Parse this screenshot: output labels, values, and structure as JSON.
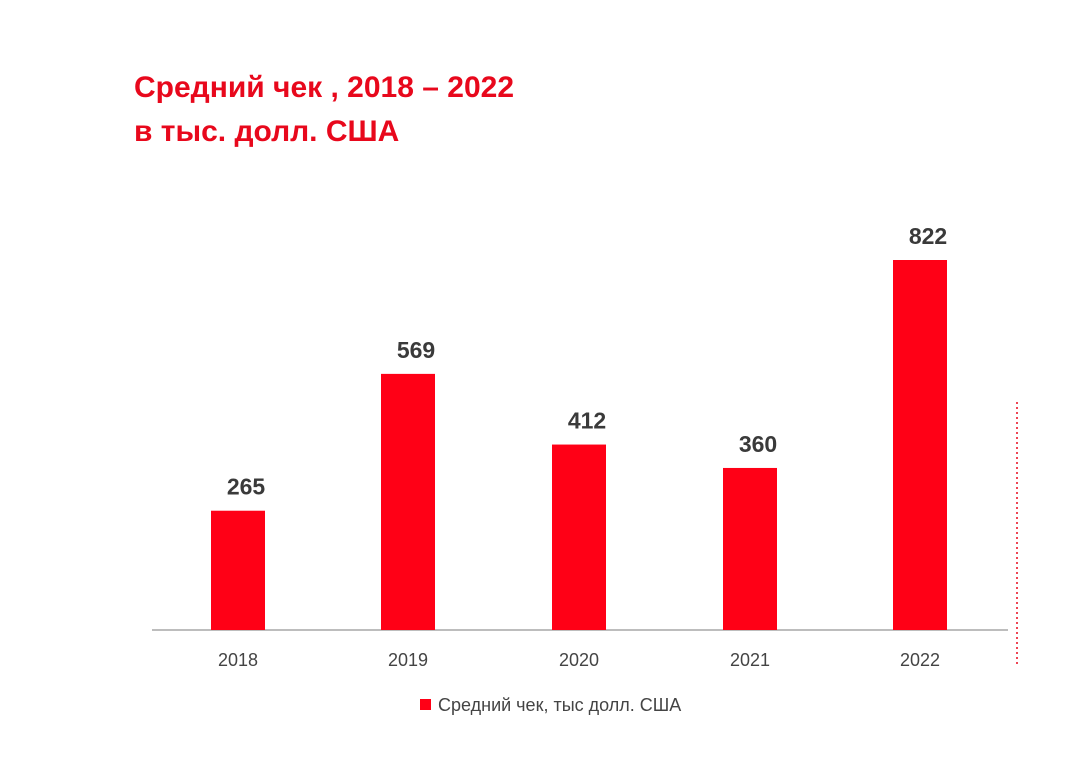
{
  "colors": {
    "accent": "#e8081c",
    "bar": "#ff0016",
    "axis": "#bdbdbd",
    "label": "#3a3a3a"
  },
  "chart_data": {
    "type": "bar",
    "title": "Средний чек , 2018 – 2022",
    "subtitle": "в тыс. долл. США",
    "categories": [
      "2018",
      "2019",
      "2020",
      "2021",
      "2022"
    ],
    "series": [
      {
        "name": "Средний чек, тыс долл. США",
        "values": [
          265,
          569,
          412,
          360,
          822
        ]
      }
    ],
    "ylim": [
      0,
      822
    ],
    "grid": false,
    "legend_position": "bottom"
  }
}
